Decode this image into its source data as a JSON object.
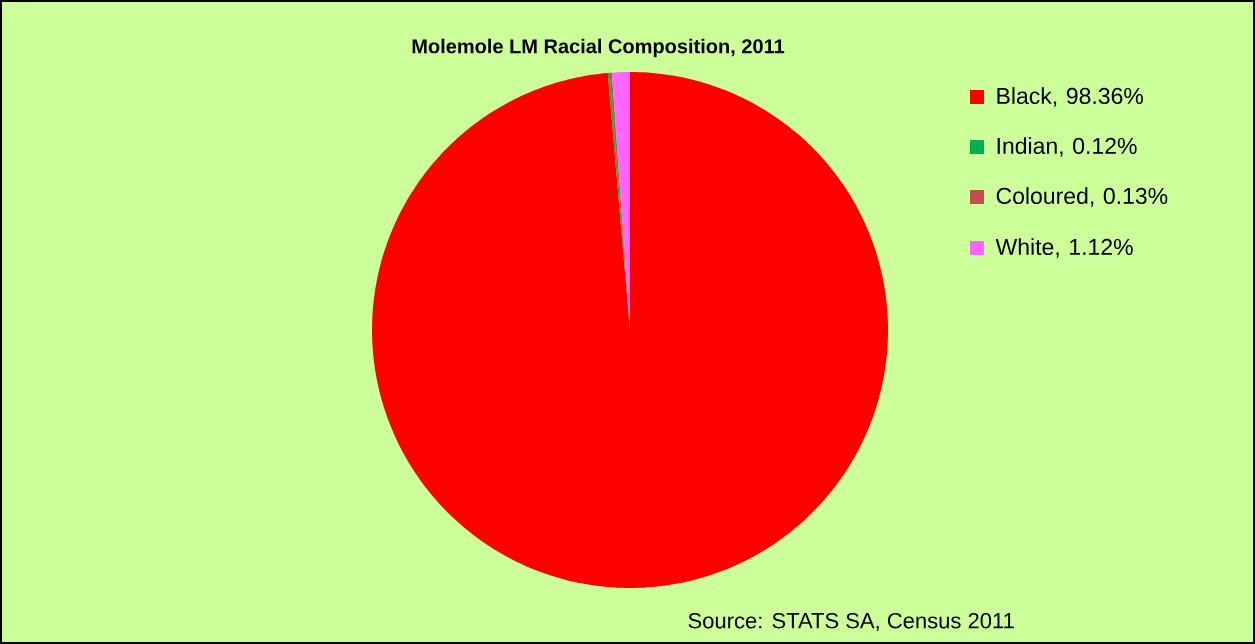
{
  "chart_data": {
    "type": "pie",
    "title": "Molemole LM Racial Composition, 2011",
    "categories": [
      "Black, 98.36%",
      "Indian, 0.12%",
      "Coloured, 0.13%",
      "White, 1.12%"
    ],
    "values": [
      98.36,
      0.12,
      0.13,
      1.12
    ],
    "colors": [
      "#ff0000",
      "#00b050",
      "#c0504d",
      "#ff66ff"
    ],
    "legend": "right",
    "annotations": [
      "Source: STATS SA, Census 2011"
    ]
  }
}
